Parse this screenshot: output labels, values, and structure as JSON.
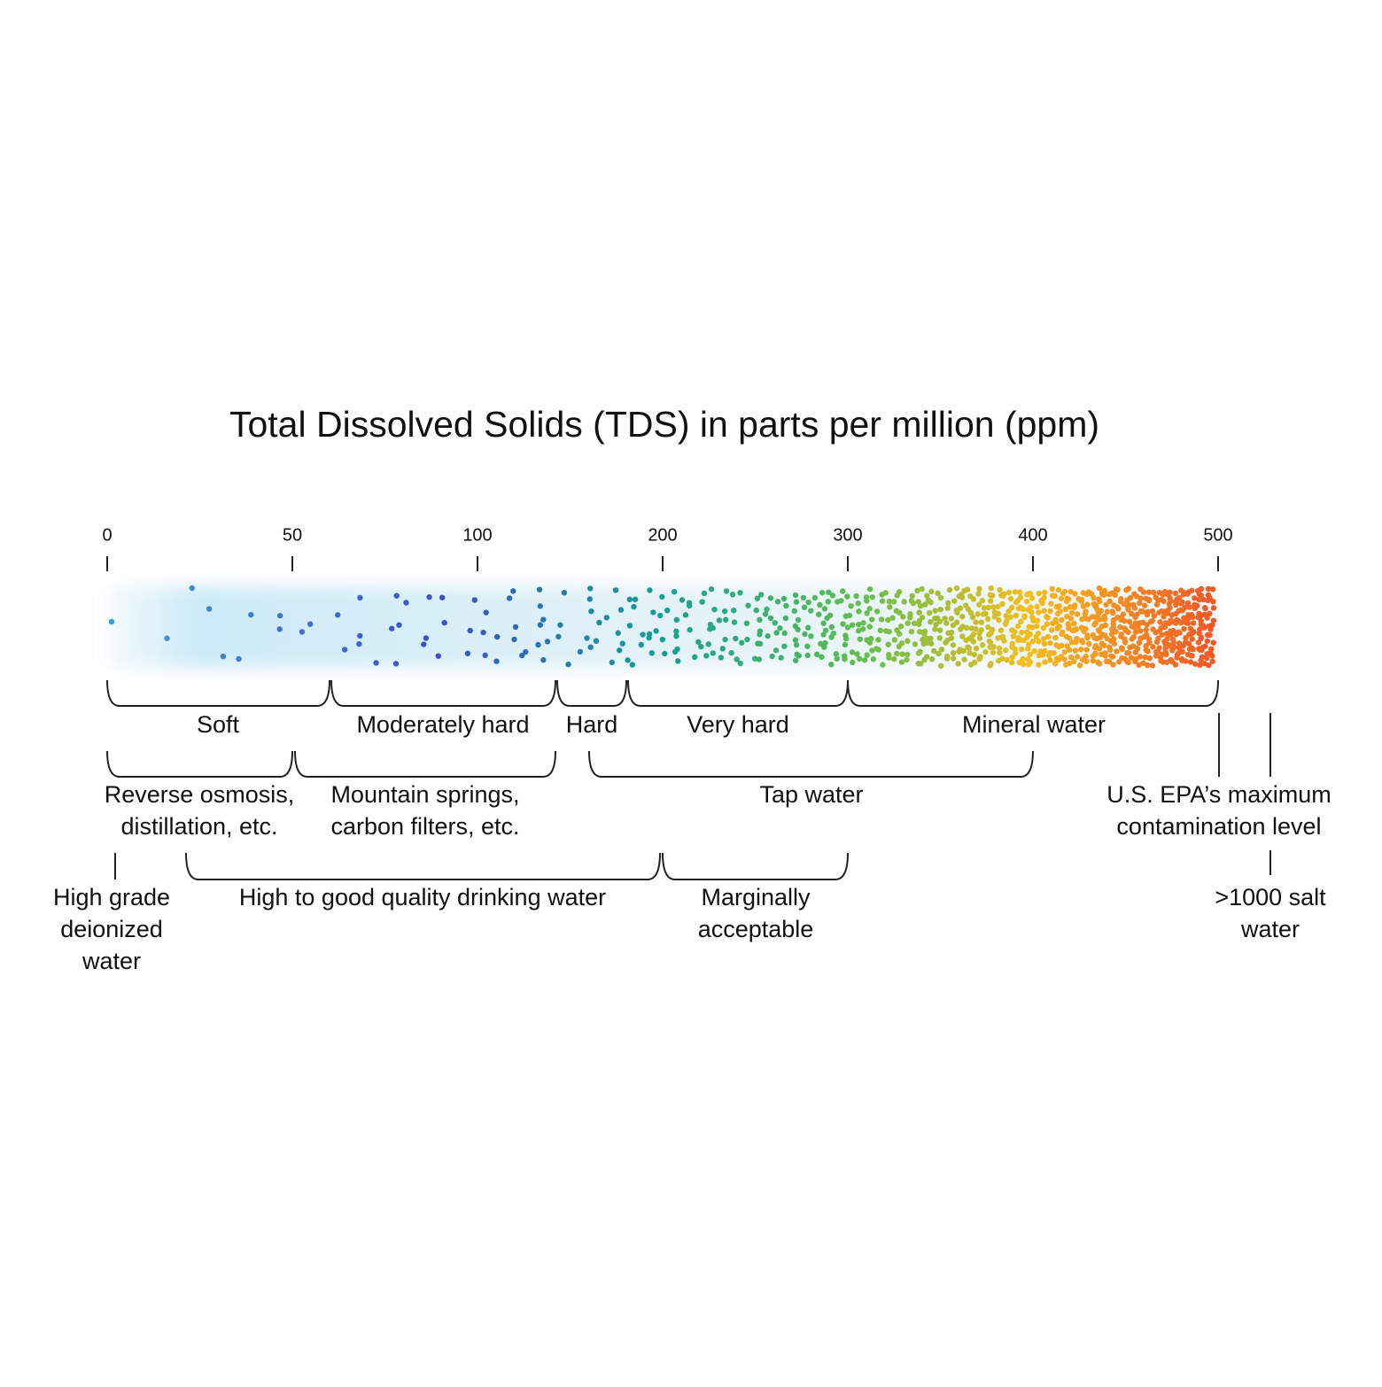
{
  "title": "Total Dissolved Solids (TDS) in parts per million (ppm)",
  "scale": {
    "ticks": [
      0,
      50,
      100,
      200,
      300,
      400,
      500
    ]
  },
  "hardness": [
    {
      "label": [
        "Soft"
      ]
    },
    {
      "label": [
        "Moderately hard"
      ]
    },
    {
      "label": [
        "Hard"
      ]
    },
    {
      "label": [
        "Very hard"
      ]
    },
    {
      "label": [
        "Mineral water"
      ]
    }
  ],
  "sources": [
    {
      "label": [
        "Reverse osmosis,",
        "distillation, etc."
      ]
    },
    {
      "label": [
        "Mountain springs,",
        "carbon filters, etc."
      ]
    },
    {
      "label": [
        "Tap water"
      ]
    }
  ],
  "quality": [
    {
      "label": [
        "High grade",
        "deionized",
        "water"
      ]
    },
    {
      "label": [
        "High to good quality drinking water"
      ]
    },
    {
      "label": [
        "Marginally",
        "acceptable"
      ]
    }
  ],
  "markers": [
    {
      "label": [
        "U.S. EPA’s maximum",
        "contamination level"
      ]
    },
    {
      "label": [
        ">1000 salt",
        "water"
      ]
    }
  ]
}
